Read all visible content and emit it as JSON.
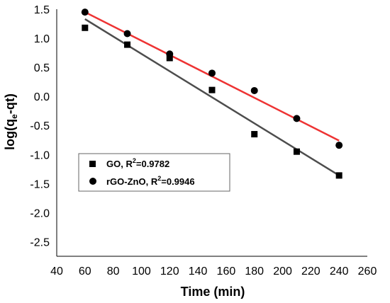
{
  "chart_data": {
    "type": "scatter",
    "title": "",
    "xlabel": "Time (min)",
    "ylabel_main": "log(q",
    "ylabel_sub": "e",
    "ylabel_tail": "-qt)",
    "xlim": [
      40,
      260
    ],
    "ylim": [
      -2.75,
      1.5
    ],
    "x_ticks": [
      40,
      60,
      80,
      100,
      120,
      140,
      160,
      180,
      200,
      220,
      240,
      260
    ],
    "y_ticks": [
      "1.5",
      "1.0",
      "0.5",
      "0.0",
      "-0.5",
      "-1.0",
      "-1.5",
      "-2.0",
      "-2.5"
    ],
    "y_tick_values": [
      1.5,
      1.0,
      0.5,
      0.0,
      -0.5,
      -1.0,
      -1.5,
      -2.0,
      -2.5
    ],
    "grid": false,
    "legend_placement": "left-lower-middle",
    "series": [
      {
        "name": "GO",
        "r2_label": "R",
        "r2_sup": "2",
        "r2_value": "=0.9782",
        "marker": "square",
        "marker_color": "#000000",
        "line_color": "#4d4d4d",
        "x": [
          60,
          90,
          120,
          150,
          180,
          210,
          240
        ],
        "y": [
          1.18,
          0.89,
          0.66,
          0.11,
          -0.65,
          -0.95,
          -1.36
        ],
        "fit": {
          "x": [
            60,
            240
          ],
          "y": [
            1.33,
            -1.36
          ]
        }
      },
      {
        "name": "rGO-ZnO",
        "r2_label": "R",
        "r2_sup": "2",
        "r2_value": "=0.9946",
        "marker": "circle",
        "marker_color": "#000000",
        "line_color": "#ee3333",
        "x": [
          60,
          90,
          120,
          150,
          180,
          210,
          240
        ],
        "y": [
          1.45,
          1.08,
          0.73,
          0.4,
          0.1,
          -0.38,
          -0.84
        ],
        "fit": {
          "x": [
            60,
            240
          ],
          "y": [
            1.45,
            -0.76
          ]
        }
      }
    ]
  }
}
